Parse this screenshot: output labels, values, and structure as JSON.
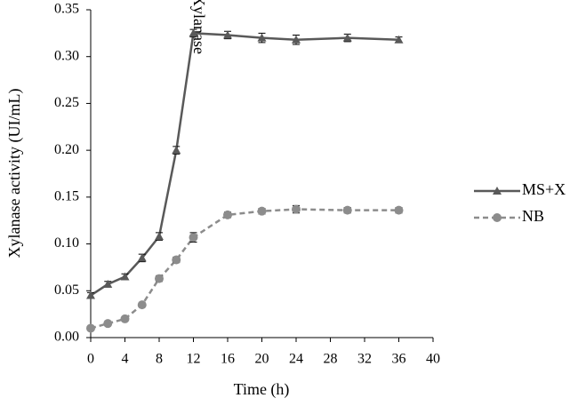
{
  "chart_data": {
    "type": "line",
    "x_label": "Time  (h)",
    "y_label": "Xylanase activity (UI/mL)",
    "annotation": "Xylanase",
    "x": [
      0,
      2,
      4,
      6,
      8,
      10,
      12,
      16,
      20,
      24,
      30,
      36
    ],
    "series": [
      {
        "name": "MS+X",
        "color": "#595959",
        "marker": "triangle",
        "dashed": false,
        "values": [
          0.045,
          0.057,
          0.065,
          0.085,
          0.108,
          0.2,
          0.325,
          0.323,
          0.32,
          0.318,
          0.32,
          0.318
        ],
        "errors": [
          0.003,
          0.003,
          0.003,
          0.004,
          0.004,
          0.004,
          0.004,
          0.004,
          0.005,
          0.005,
          0.004,
          0.003
        ]
      },
      {
        "name": "NB",
        "color": "#8c8c8c",
        "marker": "circle",
        "dashed": true,
        "values": [
          0.01,
          0.015,
          0.02,
          0.035,
          0.063,
          0.083,
          0.107,
          0.131,
          0.135,
          0.137,
          0.136,
          0.136
        ],
        "errors": [
          0.002,
          0.002,
          0.002,
          0.002,
          0.003,
          0.003,
          0.005,
          0.003,
          0.003,
          0.004,
          0.003,
          0.003
        ]
      }
    ],
    "xlim": [
      0,
      40
    ],
    "xticks": [
      0,
      4,
      8,
      12,
      16,
      20,
      24,
      28,
      32,
      36,
      40
    ],
    "ylim": [
      0,
      0.35
    ],
    "yticks": [
      {
        "value": 0,
        "label": "0.00"
      },
      {
        "value": 0.05,
        "label": "0.05"
      },
      {
        "value": 0.1,
        "label": "0.10"
      },
      {
        "value": 0.15,
        "label": "0.15"
      },
      {
        "value": 0.2,
        "label": "0.20"
      },
      {
        "value": 0.25,
        "label": "0.25"
      },
      {
        "value": 0.3,
        "label": "0.30"
      },
      {
        "value": 0.35,
        "label": "0.35"
      }
    ],
    "grid": false,
    "legend": "right"
  }
}
